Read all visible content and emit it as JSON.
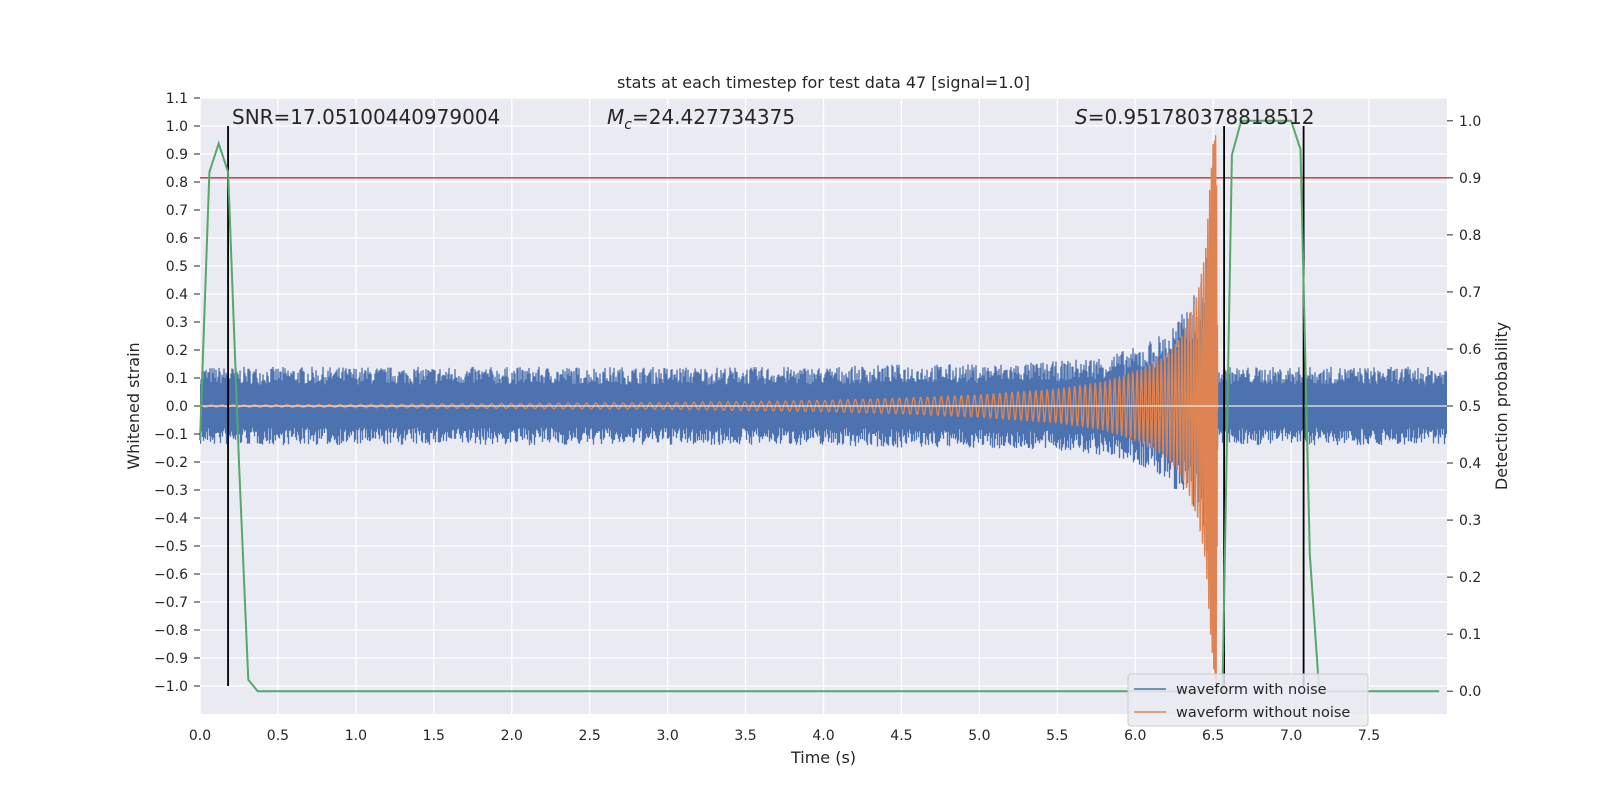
{
  "chart_data": {
    "type": "line",
    "title": "stats at each timestep for test data 47 [signal=1.0]",
    "xlabel": "Time (s)",
    "ylabel": "Whitened strain",
    "y2label": "Detection probability",
    "xlim": [
      0,
      8
    ],
    "ylim": [
      -1.1,
      1.1
    ],
    "y2lim": [
      -0.04,
      1.04
    ],
    "grid": true,
    "legend_position": "bottom-right",
    "x_ticks": [
      "0.0",
      "0.5",
      "1.0",
      "1.5",
      "2.0",
      "2.5",
      "3.0",
      "3.5",
      "4.0",
      "4.5",
      "5.0",
      "5.5",
      "6.0",
      "6.5",
      "7.0",
      "7.5"
    ],
    "y_ticks": [
      "1.1",
      "1.0",
      "0.9",
      "0.8",
      "0.7",
      "0.6",
      "0.5",
      "0.4",
      "0.3",
      "0.2",
      "0.1",
      "0.0",
      "−0.1",
      "−0.2",
      "−0.3",
      "−0.4",
      "−0.5",
      "−0.6",
      "−0.7",
      "−0.8",
      "−0.9",
      "−1.0"
    ],
    "y2_ticks": [
      "1.0",
      "0.9",
      "0.8",
      "0.7",
      "0.6",
      "0.5",
      "0.4",
      "0.3",
      "0.2",
      "0.1",
      "0.0"
    ],
    "annotations": {
      "snr": "SNR=17.05100440979004",
      "mc_symbol": "M",
      "mc_sub": "c",
      "mc_value": "=24.427734375",
      "s_symbol": "S",
      "s_value": "=0.951780378818512"
    },
    "threshold_line": {
      "y2": 0.9,
      "color": "#c44e52"
    },
    "vertical_lines_x": [
      0.18,
      6.57,
      7.08
    ],
    "vertical_lines_range": [
      -1.0,
      1.0
    ],
    "series": [
      {
        "name": "waveform with noise",
        "color": "#4c72b0",
        "description": "noisy whitened strain, envelope amplitude over time",
        "x": [
          0.0,
          0.5,
          1.0,
          2.0,
          3.0,
          4.0,
          4.5,
          5.0,
          5.5,
          5.8,
          6.0,
          6.2,
          6.3,
          6.4,
          6.45,
          6.5,
          6.53,
          6.6,
          7.0,
          8.0
        ],
        "envelope": [
          0.14,
          0.14,
          0.14,
          0.14,
          0.14,
          0.14,
          0.15,
          0.15,
          0.16,
          0.18,
          0.21,
          0.27,
          0.33,
          0.42,
          0.5,
          0.8,
          0.14,
          0.14,
          0.14,
          0.14
        ]
      },
      {
        "name": "waveform without noise",
        "color": "#dd8452",
        "description": "clean chirp waveform, envelope amplitude over time",
        "x": [
          0.0,
          1.0,
          2.0,
          3.0,
          4.0,
          4.5,
          5.0,
          5.5,
          5.8,
          6.0,
          6.2,
          6.3,
          6.4,
          6.45,
          6.5,
          6.52,
          6.53
        ],
        "envelope": [
          0.004,
          0.006,
          0.009,
          0.012,
          0.02,
          0.028,
          0.04,
          0.06,
          0.085,
          0.12,
          0.18,
          0.25,
          0.4,
          0.55,
          0.95,
          1.0,
          0.0
        ]
      },
      {
        "name": "",
        "color": "#55a868",
        "axis": "right",
        "description": "detection probability",
        "x": [
          0.0,
          0.06,
          0.12,
          0.18,
          0.25,
          0.31,
          0.37,
          6.56,
          6.62,
          6.68,
          6.74,
          7.0,
          7.06,
          7.12,
          7.18,
          7.95
        ],
        "y": [
          0.44,
          0.91,
          0.96,
          0.91,
          0.4,
          0.02,
          0.0,
          0.0,
          0.94,
          1.0,
          1.0,
          1.0,
          0.95,
          0.24,
          0.0,
          0.0
        ]
      }
    ]
  }
}
